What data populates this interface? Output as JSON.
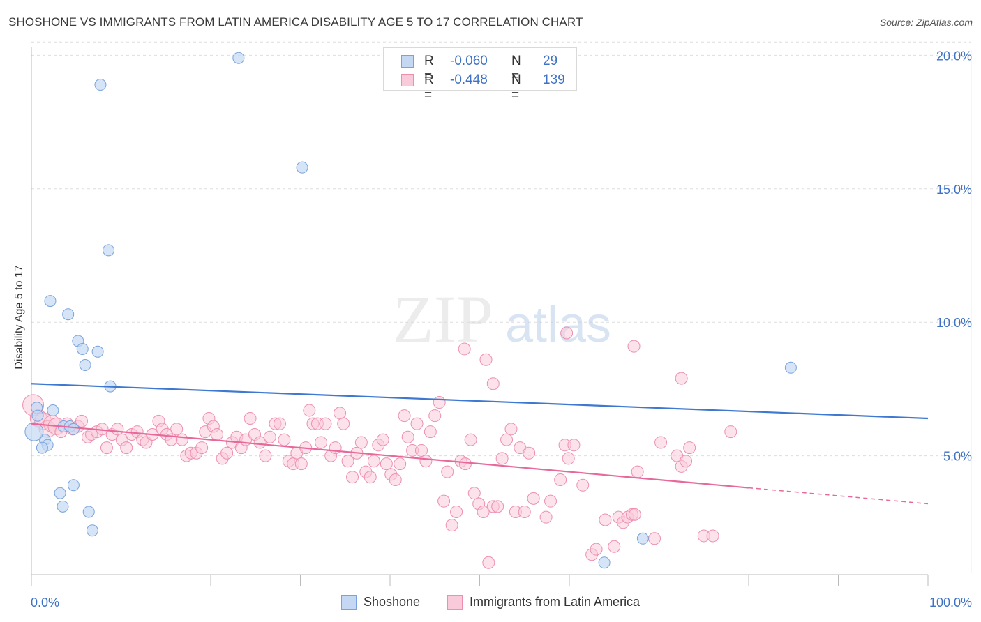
{
  "title": "SHOSHONE VS IMMIGRANTS FROM LATIN AMERICA DISABILITY AGE 5 TO 17 CORRELATION CHART",
  "source": "Source: ZipAtlas.com",
  "watermark": {
    "zip": "ZIP",
    "atlas": "atlas"
  },
  "legend": {
    "rows": [
      {
        "r_label": "R =",
        "r_value": "-0.060",
        "n_label": "N =",
        "n_value": "29"
      },
      {
        "r_label": "R =",
        "r_value": "-0.448",
        "n_label": "N =",
        "n_value": "139"
      }
    ]
  },
  "colors": {
    "shoshone_fill": "#c5d8f3",
    "shoshone_stroke": "#7aa3dd",
    "shoshone_line": "#3f78d0",
    "latin_fill": "#f9cad9",
    "latin_stroke": "#ee8fae",
    "latin_line": "#e7689a",
    "grid": "#dedede",
    "tick_label": "#3f72c4"
  },
  "chart_data": {
    "type": "scatter",
    "title": "SHOSHONE VS IMMIGRANTS FROM LATIN AMERICA DISABILITY AGE 5 TO 17 CORRELATION CHART",
    "xlabel": "",
    "ylabel": "Disability Age 5 to 17",
    "xlim": [
      0,
      100
    ],
    "ylim": [
      0,
      20.5
    ],
    "x_tick_labels": [
      "0.0%",
      "100.0%"
    ],
    "y_ticks": [
      5,
      10,
      15,
      20
    ],
    "y_tick_labels": [
      "5.0%",
      "10.0%",
      "15.0%",
      "20.0%"
    ],
    "grid": true,
    "legend_position": "bottom-center",
    "series": [
      {
        "name": "Shoshone",
        "r": -0.06,
        "n": 29,
        "points": [
          [
            23.1,
            19.9
          ],
          [
            7.7,
            18.9
          ],
          [
            30.2,
            15.8
          ],
          [
            8.6,
            12.7
          ],
          [
            2.1,
            10.8
          ],
          [
            4.1,
            10.3
          ],
          [
            5.2,
            9.3
          ],
          [
            5.7,
            9.0
          ],
          [
            7.4,
            8.9
          ],
          [
            6.0,
            8.4
          ],
          [
            8.8,
            7.6
          ],
          [
            84.7,
            8.3
          ],
          [
            0.6,
            6.8
          ],
          [
            2.4,
            6.7
          ],
          [
            0.7,
            6.5
          ],
          [
            3.6,
            6.1
          ],
          [
            4.3,
            6.1
          ],
          [
            4.7,
            6.0
          ],
          [
            1.5,
            5.6
          ],
          [
            1.8,
            5.4
          ],
          [
            1.2,
            5.3
          ],
          [
            4.7,
            3.9
          ],
          [
            3.2,
            3.6
          ],
          [
            3.5,
            3.1
          ],
          [
            6.4,
            2.9
          ],
          [
            6.8,
            2.2
          ],
          [
            68.2,
            1.9
          ],
          [
            63.9,
            1.0
          ],
          [
            0.3,
            5.9
          ]
        ],
        "trend": {
          "x": [
            0,
            100
          ],
          "y": [
            7.7,
            6.4
          ]
        }
      },
      {
        "name": "Immigrants from Latin America",
        "r": -0.448,
        "n": 139,
        "points": [
          [
            0.2,
            6.9
          ],
          [
            0.8,
            6.4
          ],
          [
            1.3,
            6.3
          ],
          [
            1.8,
            6.0
          ],
          [
            2.3,
            6.2
          ],
          [
            2.8,
            6.1
          ],
          [
            3.3,
            5.9
          ],
          [
            4.0,
            6.2
          ],
          [
            4.6,
            6.0
          ],
          [
            5.2,
            6.1
          ],
          [
            5.6,
            6.3
          ],
          [
            6.3,
            5.7
          ],
          [
            6.7,
            5.8
          ],
          [
            7.3,
            5.9
          ],
          [
            7.9,
            6.0
          ],
          [
            8.4,
            5.3
          ],
          [
            9.0,
            5.8
          ],
          [
            9.6,
            6.0
          ],
          [
            10.1,
            5.6
          ],
          [
            10.6,
            5.3
          ],
          [
            11.2,
            5.8
          ],
          [
            11.8,
            5.9
          ],
          [
            12.4,
            5.6
          ],
          [
            12.8,
            5.5
          ],
          [
            13.5,
            5.8
          ],
          [
            14.2,
            6.3
          ],
          [
            14.6,
            6.0
          ],
          [
            15.1,
            5.8
          ],
          [
            15.6,
            5.6
          ],
          [
            16.2,
            6.0
          ],
          [
            16.8,
            5.6
          ],
          [
            17.3,
            5.0
          ],
          [
            17.8,
            5.1
          ],
          [
            18.4,
            5.1
          ],
          [
            19.0,
            5.3
          ],
          [
            19.4,
            5.9
          ],
          [
            19.8,
            6.4
          ],
          [
            20.3,
            6.1
          ],
          [
            20.7,
            5.8
          ],
          [
            21.3,
            4.9
          ],
          [
            21.8,
            5.1
          ],
          [
            22.4,
            5.5
          ],
          [
            22.9,
            5.7
          ],
          [
            23.4,
            5.3
          ],
          [
            23.9,
            5.6
          ],
          [
            24.4,
            6.4
          ],
          [
            24.9,
            5.8
          ],
          [
            25.5,
            5.5
          ],
          [
            26.1,
            5.0
          ],
          [
            26.6,
            5.7
          ],
          [
            27.2,
            6.2
          ],
          [
            27.7,
            6.2
          ],
          [
            28.2,
            5.6
          ],
          [
            28.7,
            4.8
          ],
          [
            29.2,
            4.7
          ],
          [
            29.6,
            5.1
          ],
          [
            30.1,
            4.7
          ],
          [
            30.6,
            5.3
          ],
          [
            31.0,
            6.7
          ],
          [
            31.4,
            6.2
          ],
          [
            31.9,
            6.2
          ],
          [
            32.3,
            5.5
          ],
          [
            32.8,
            6.2
          ],
          [
            33.4,
            5.0
          ],
          [
            33.9,
            5.3
          ],
          [
            34.4,
            6.6
          ],
          [
            34.8,
            6.2
          ],
          [
            35.3,
            4.8
          ],
          [
            35.8,
            4.2
          ],
          [
            36.3,
            5.1
          ],
          [
            36.8,
            5.5
          ],
          [
            37.3,
            4.4
          ],
          [
            37.8,
            4.2
          ],
          [
            38.2,
            4.8
          ],
          [
            38.7,
            5.4
          ],
          [
            39.2,
            5.6
          ],
          [
            39.6,
            4.7
          ],
          [
            40.1,
            4.3
          ],
          [
            40.6,
            4.1
          ],
          [
            41.1,
            4.7
          ],
          [
            41.6,
            6.5
          ],
          [
            42.0,
            5.7
          ],
          [
            42.5,
            5.2
          ],
          [
            43.0,
            6.2
          ],
          [
            43.5,
            5.2
          ],
          [
            44.0,
            4.8
          ],
          [
            44.5,
            5.9
          ],
          [
            45.0,
            6.5
          ],
          [
            45.5,
            7.0
          ],
          [
            46.0,
            3.3
          ],
          [
            46.4,
            4.4
          ],
          [
            46.9,
            2.4
          ],
          [
            47.4,
            2.9
          ],
          [
            47.9,
            4.8
          ],
          [
            48.4,
            4.7
          ],
          [
            49.0,
            5.6
          ],
          [
            49.4,
            3.6
          ],
          [
            49.9,
            3.2
          ],
          [
            50.4,
            2.9
          ],
          [
            51.0,
            1.0
          ],
          [
            51.5,
            3.1
          ],
          [
            52.0,
            3.1
          ],
          [
            52.5,
            4.9
          ],
          [
            53.0,
            5.6
          ],
          [
            53.5,
            6.0
          ],
          [
            54.0,
            2.9
          ],
          [
            54.5,
            5.3
          ],
          [
            55.0,
            2.9
          ],
          [
            55.5,
            5.1
          ],
          [
            56.0,
            3.4
          ],
          [
            57.4,
            2.7
          ],
          [
            57.9,
            3.3
          ],
          [
            59.0,
            4.1
          ],
          [
            59.5,
            5.4
          ],
          [
            59.9,
            4.9
          ],
          [
            60.5,
            5.4
          ],
          [
            61.5,
            3.9
          ],
          [
            62.5,
            1.3
          ],
          [
            63.0,
            1.5
          ],
          [
            64.0,
            2.6
          ],
          [
            65.0,
            1.6
          ],
          [
            65.5,
            2.7
          ],
          [
            66.0,
            2.5
          ],
          [
            66.5,
            2.7
          ],
          [
            67.0,
            2.8
          ],
          [
            67.3,
            2.8
          ],
          [
            67.6,
            4.4
          ],
          [
            69.5,
            1.9
          ],
          [
            70.2,
            5.5
          ],
          [
            72.0,
            5.0
          ],
          [
            72.5,
            4.6
          ],
          [
            73.0,
            4.8
          ],
          [
            73.4,
            5.3
          ],
          [
            75.0,
            2.0
          ],
          [
            78.0,
            5.9
          ],
          [
            76.0,
            2.0
          ],
          [
            67.2,
            9.1
          ],
          [
            59.7,
            9.6
          ],
          [
            51.5,
            7.7
          ],
          [
            50.7,
            8.6
          ],
          [
            48.3,
            9.0
          ],
          [
            72.5,
            7.9
          ]
        ],
        "trend": {
          "x": [
            0,
            80
          ],
          "y": [
            6.2,
            3.8
          ]
        },
        "trend_projection": {
          "x": [
            80,
            100
          ],
          "y": [
            3.8,
            3.2
          ]
        }
      }
    ]
  },
  "bottom_legend": [
    {
      "label": "Shoshone"
    },
    {
      "label": "Immigrants from Latin America"
    }
  ]
}
